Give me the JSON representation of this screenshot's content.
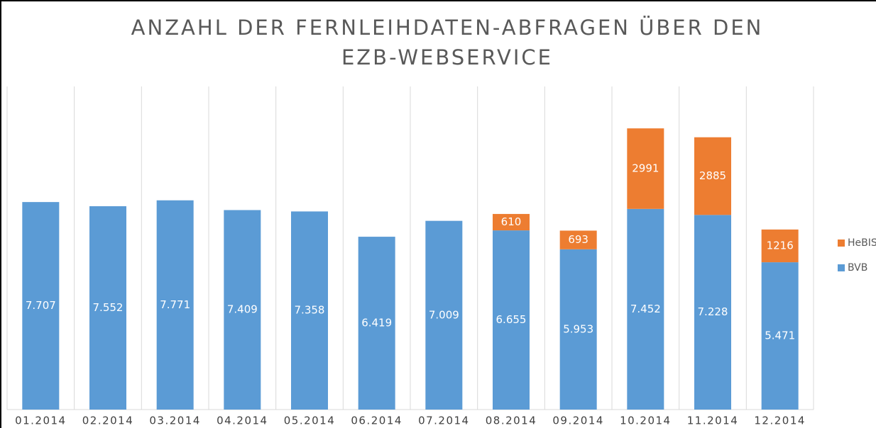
{
  "chart_data": {
    "type": "stacked-bar",
    "title": "ANZAHL DER FERNLEIHDATEN-ABFRAGEN ÜBER DEN EZB-WEBSERVICE",
    "categories": [
      "01.2014",
      "02.2014",
      "03.2014",
      "04.2014",
      "05.2014",
      "06.2014",
      "07.2014",
      "08.2014",
      "09.2014",
      "10.2014",
      "11.2014",
      "12.2014"
    ],
    "series": [
      {
        "name": "BVB",
        "color": "#5b9bd5",
        "values": [
          7707,
          7552,
          7771,
          7409,
          7358,
          6419,
          7009,
          6655,
          5953,
          7452,
          7228,
          5471
        ],
        "value_labels": [
          "7.707",
          "7.552",
          "7.771",
          "7.409",
          "7.358",
          "6.419",
          "7.009",
          "6.655",
          "5.953",
          "7.452",
          "7.228",
          "5.471"
        ]
      },
      {
        "name": "HeBIS",
        "color": "#ed7d31",
        "values": [
          null,
          null,
          null,
          null,
          null,
          null,
          null,
          610,
          693,
          2991,
          2885,
          1216
        ]
      }
    ],
    "ylim": [
      0,
      12000
    ],
    "legend": "right"
  }
}
